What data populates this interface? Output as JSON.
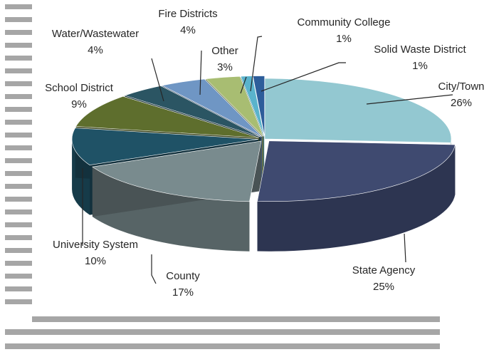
{
  "chart_data": {
    "type": "pie",
    "style": "3d-exploded-perspective",
    "title": "",
    "slices": [
      {
        "label": "City/Town",
        "value": 26,
        "display": "26%",
        "color": "#93c8d1"
      },
      {
        "label": "State Agency",
        "value": 25,
        "display": "25%",
        "color": "#3f4a70"
      },
      {
        "label": "County",
        "value": 17,
        "display": "17%",
        "color": "#798b8e"
      },
      {
        "label": "University System",
        "value": 10,
        "display": "10%",
        "color": "#1f5266"
      },
      {
        "label": "School District",
        "value": 9,
        "display": "9%",
        "color": "#5e6e2d"
      },
      {
        "label": "Water/Wastewater",
        "value": 4,
        "display": "4%",
        "color": "#2b5563"
      },
      {
        "label": "Fire Districts",
        "value": 4,
        "display": "4%",
        "color": "#6f96c4"
      },
      {
        "label": "Other",
        "value": 3,
        "display": "3%",
        "color": "#a8bd72"
      },
      {
        "label": "Community College",
        "value": 1,
        "display": "1%",
        "color": "#5ab3cc"
      },
      {
        "label": "Solid Waste District",
        "value": 1,
        "display": "1%",
        "color": "#2d5d9a"
      }
    ],
    "legend": "none"
  }
}
